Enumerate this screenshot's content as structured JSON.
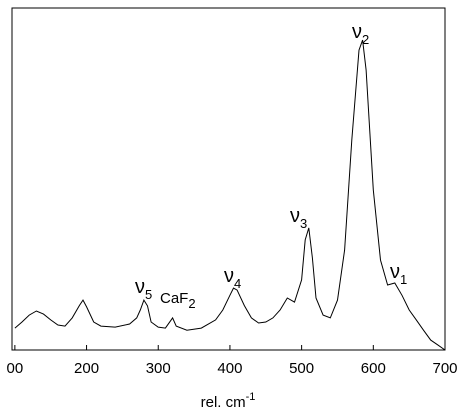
{
  "chart_data": {
    "type": "line",
    "x_label": {
      "text": "rel. cm",
      "sup": "-1"
    },
    "xlim": [
      96,
      700
    ],
    "ylim": [
      0,
      100
    ],
    "xticks": [
      {
        "value": 100,
        "label": "00"
      },
      200,
      300,
      400,
      500,
      600,
      700
    ],
    "series": [
      {
        "color": "#000000",
        "x": [
          100,
          110,
          120,
          130,
          140,
          150,
          160,
          170,
          180,
          190,
          195,
          200,
          210,
          220,
          240,
          260,
          270,
          275,
          280,
          285,
          290,
          300,
          310,
          320,
          325,
          340,
          360,
          380,
          390,
          400,
          405,
          410,
          420,
          430,
          440,
          450,
          460,
          470,
          480,
          490,
          500,
          505,
          510,
          515,
          520,
          530,
          540,
          550,
          560,
          570,
          580,
          585,
          590,
          600,
          610,
          620,
          630,
          640,
          650,
          660,
          670,
          680,
          690,
          700
        ],
        "values": [
          6.4,
          8.2,
          10.2,
          11.4,
          10.5,
          8.8,
          7.3,
          7,
          9.4,
          13,
          14.6,
          12.6,
          8.2,
          7,
          6.7,
          7.6,
          9.4,
          11.7,
          14.6,
          12.9,
          8.2,
          6.7,
          6.4,
          9.4,
          7,
          5.8,
          6.4,
          8.8,
          11.7,
          16,
          18.1,
          17.5,
          13,
          9.4,
          7.9,
          8.2,
          9.4,
          11.7,
          15.2,
          14,
          20.5,
          32.2,
          35.7,
          26.9,
          15.2,
          10.2,
          9.4,
          14.6,
          29.2,
          61.4,
          87.7,
          90.6,
          81.9,
          46.8,
          26.3,
          19,
          19.6,
          16,
          11.7,
          8.8,
          5.8,
          2.9,
          1.5,
          0
        ]
      }
    ],
    "annotations": [
      {
        "text": "ν",
        "sub": "5"
      },
      {
        "text": "CaF",
        "sub": "2"
      },
      {
        "text": "ν",
        "sub": "4"
      },
      {
        "text": "ν",
        "sub": "3"
      },
      {
        "text": "ν",
        "sub": "2"
      },
      {
        "text": "ν",
        "sub": "1"
      }
    ]
  }
}
